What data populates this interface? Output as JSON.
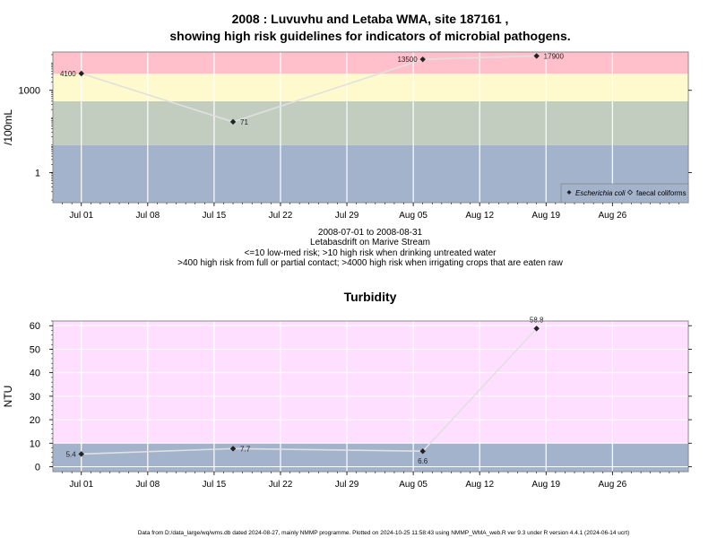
{
  "colors": {
    "band_red": "#ffc0cb",
    "band_yellow": "#fffacd",
    "band_olive": "#c2cdc0",
    "band_blue": "#a3b3cc",
    "band_pink": "#ffdfff",
    "grid": "#ffffff",
    "line": "#e0e0e0",
    "point": "#222222",
    "frame": "#888888"
  },
  "chart_data": [
    {
      "type": "line",
      "title": "2008 : Luvuvhu and Letaba WMA, site 187161 ,",
      "subtitle": "showing high risk guidelines for indicators of microbial pathogens.",
      "xlabel": "",
      "ylabel": "/100mL",
      "yscale": "log",
      "xlim": [
        "2008-06-28",
        "2008-09-03"
      ],
      "ylim": [
        0.08,
        25000
      ],
      "x_ticks": [
        "Jul 01",
        "Jul 08",
        "Jul 15",
        "Jul 22",
        "Jul 29",
        "Aug 05",
        "Aug 12",
        "Aug 19",
        "Aug 26"
      ],
      "y_ticks": [
        "1",
        "1000"
      ],
      "grid": true,
      "bands": [
        {
          "from": 0.08,
          "to": 10,
          "color": "blue"
        },
        {
          "from": 10,
          "to": 400,
          "color": "olive"
        },
        {
          "from": 400,
          "to": 4000,
          "color": "yellow"
        },
        {
          "from": 4000,
          "to": 25000,
          "color": "red"
        }
      ],
      "series": [
        {
          "name": "Escherichia coli",
          "x": [
            "2008-07-01",
            "2008-07-17",
            "2008-08-06",
            "2008-08-18"
          ],
          "values": [
            4100,
            71,
            13500,
            17900
          ],
          "labels": [
            "4100",
            "71",
            "13500",
            "17900"
          ]
        }
      ],
      "legend": {
        "position": "bottom-right",
        "entries": [
          {
            "label": "Escherichia coli",
            "marker": "filled-diamond"
          },
          {
            "label": "faecal coliforms",
            "marker": "open-diamond"
          }
        ]
      },
      "notes": [
        "2008-07-01 to 2008-08-31",
        "Letabasdrift on Marive Stream",
        "<=10 low-med risk; >10 high risk when drinking untreated water",
        ">400 high risk from full or partial contact; >4000 high risk when irrigating crops that are eaten raw"
      ]
    },
    {
      "type": "line",
      "title": "Turbidity",
      "xlabel": "",
      "ylabel": "NTU",
      "xlim": [
        "2008-06-28",
        "2008-09-03"
      ],
      "ylim": [
        -2.1,
        62
      ],
      "x_ticks": [
        "Jul 01",
        "Jul 08",
        "Jul 15",
        "Jul 22",
        "Jul 29",
        "Aug 05",
        "Aug 12",
        "Aug 19",
        "Aug 26"
      ],
      "y_ticks": [
        "0",
        "10",
        "20",
        "30",
        "40",
        "50",
        "60"
      ],
      "grid": true,
      "bands": [
        {
          "from": -2.1,
          "to": 10,
          "color": "blue"
        },
        {
          "from": 10,
          "to": 62,
          "color": "pink"
        }
      ],
      "series": [
        {
          "x": [
            "2008-07-01",
            "2008-07-17",
            "2008-08-06",
            "2008-08-18"
          ],
          "values": [
            5.4,
            7.7,
            6.6,
            58.8
          ],
          "labels": [
            "5.4",
            "7.7",
            "6.6",
            "58.8"
          ]
        }
      ]
    }
  ],
  "footer": "Data from D:/data_large/wq/wms.db dated 2024-08-27, mainly NMMP programme. Plotted on 2024-10-25 11:58:43 using NMMP_WMA_web.R ver 9.3 under R version 4.4.1 (2024-06-14 ucrt)"
}
